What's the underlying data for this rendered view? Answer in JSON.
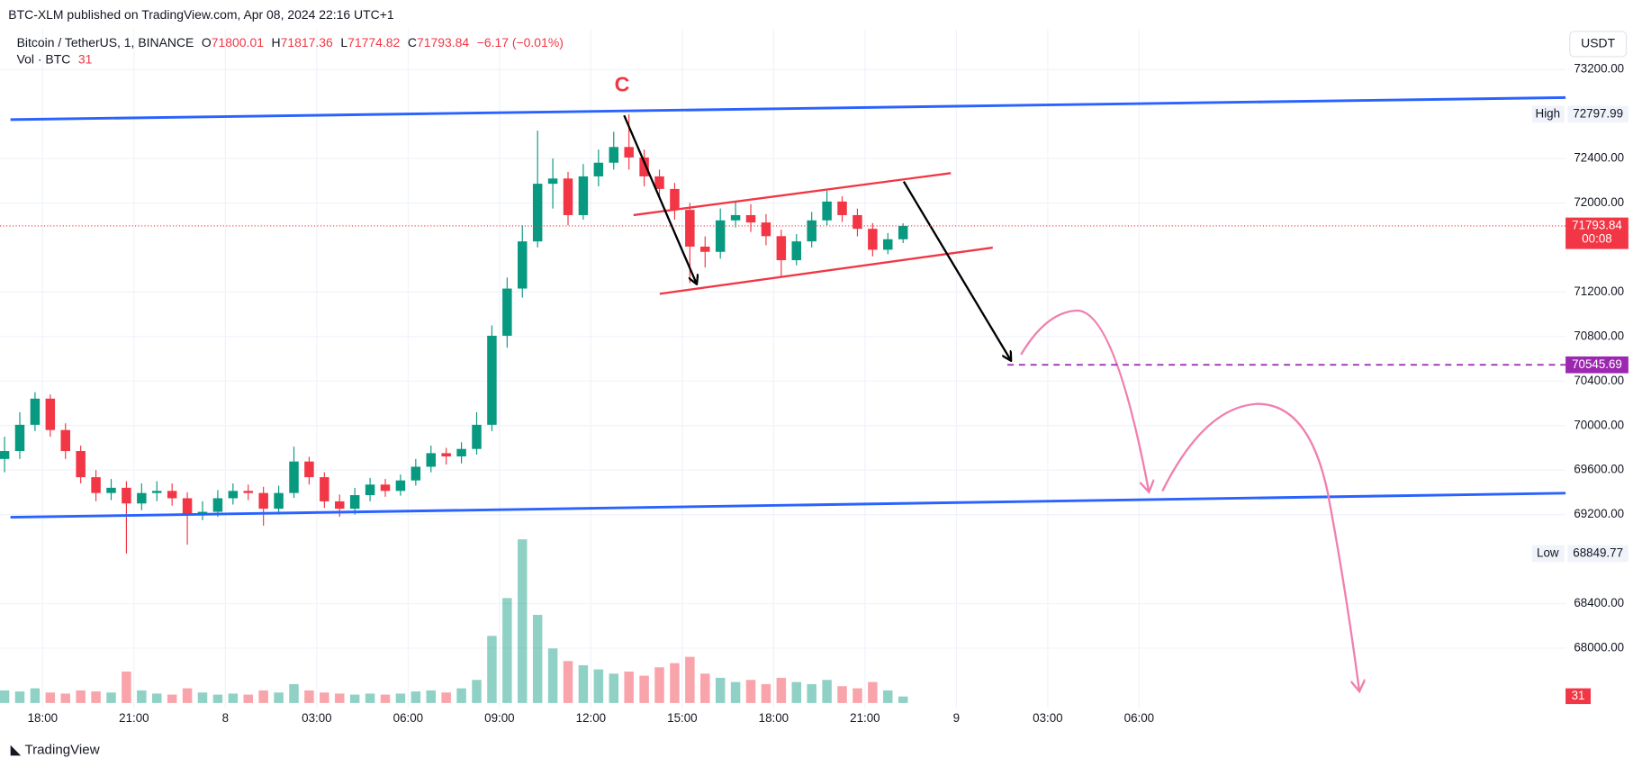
{
  "header": {
    "publisher": "BTC-XLM published on TradingView.com, Apr 08, 2024 22:16 UTC+1",
    "brand": "TradingView",
    "currency_button": "USDT"
  },
  "chart_data": {
    "type": "candlestick",
    "legend": {
      "symbol": "Bitcoin / TetherUS, 1, BINANCE",
      "ohlc": [
        {
          "key": "O",
          "value": "71800.01"
        },
        {
          "key": "H",
          "value": "71817.36"
        },
        {
          "key": "L",
          "value": "71774.82"
        },
        {
          "key": "C",
          "value": "71793.84"
        }
      ],
      "change": "−6.17 (−0.01%)",
      "volume_title": "Vol · BTC"
    },
    "annotation": "C",
    "high_label": "High",
    "low_label": "Low",
    "countdown": "00:08",
    "target_level": 70545.69,
    "up_color": "#089981",
    "down_color": "#f23645",
    "x": [
      -1.25,
      -0.75,
      -0.25,
      0.25,
      0.75,
      1.25,
      1.75,
      2.25,
      2.75,
      3.25,
      3.75,
      4.25,
      4.75,
      5.25,
      5.75,
      6.25,
      6.75,
      7.25,
      7.75,
      8.25,
      8.75,
      9.25,
      9.75,
      10.25,
      10.75,
      11.25,
      11.75,
      12.25,
      12.75,
      13.25,
      13.75,
      14.25,
      14.75,
      15.25,
      15.75,
      16.25,
      16.75,
      17.25,
      17.75,
      18.25,
      18.75,
      19.25,
      19.75,
      20.25,
      20.75,
      21.25,
      21.75,
      22.25,
      22.75,
      23.25,
      23.75,
      24.25,
      24.75,
      25.25,
      25.75,
      26.25,
      26.75,
      27.25,
      27.75,
      28.25
    ],
    "open": [
      69700,
      69771,
      70007,
      70242,
      69960,
      69771,
      69536,
      69394,
      69441,
      69300,
      69394,
      69413,
      69347,
      69206,
      69225,
      69347,
      69413,
      69394,
      69253,
      69394,
      69677,
      69536,
      69319,
      69253,
      69375,
      69470,
      69413,
      69507,
      69630,
      69752,
      69723,
      69790,
      70007,
      70807,
      71231,
      71655,
      72173,
      72220,
      71891,
      72239,
      72362,
      72503,
      72409,
      72239,
      72126,
      71938,
      71608,
      71561,
      71844,
      71891,
      71825,
      71702,
      71486,
      71655,
      71844,
      72013,
      71891,
      71768,
      71580,
      71674
    ],
    "high": [
      69900,
      70120,
      70300,
      70280,
      70020,
      69820,
      69600,
      69520,
      69500,
      69480,
      69500,
      69480,
      69400,
      69320,
      69420,
      69480,
      69470,
      69450,
      69460,
      69810,
      69720,
      69580,
      69380,
      69440,
      69530,
      69520,
      69560,
      69700,
      69820,
      69800,
      69850,
      70120,
      70900,
      71330,
      71800,
      72650,
      72400,
      72280,
      72350,
      72480,
      72640,
      72797.99,
      72480,
      72300,
      72180,
      72000,
      71700,
      71950,
      72020,
      71990,
      71900,
      71760,
      71720,
      71920,
      72110,
      72060,
      71950,
      71820,
      71730,
      71817.36
    ],
    "low": [
      69580,
      69700,
      69950,
      69900,
      69700,
      69480,
      69320,
      69330,
      68849.77,
      69240,
      69320,
      69280,
      68930,
      69150,
      69180,
      69290,
      69330,
      69100,
      69200,
      69350,
      69470,
      69260,
      69180,
      69200,
      69320,
      69360,
      69370,
      69460,
      69580,
      69650,
      69660,
      69740,
      69950,
      70700,
      71150,
      71600,
      71950,
      71800,
      71850,
      72150,
      72300,
      72300,
      72150,
      72030,
      71850,
      71280,
      71420,
      71500,
      71780,
      71740,
      71620,
      71330,
      71440,
      71600,
      71800,
      71830,
      71700,
      71520,
      71540,
      71640
    ],
    "close": [
      69771,
      70007,
      70242,
      69960,
      69771,
      69536,
      69394,
      69441,
      69300,
      69394,
      69413,
      69347,
      69206,
      69225,
      69347,
      69413,
      69394,
      69253,
      69394,
      69677,
      69536,
      69319,
      69253,
      69375,
      69470,
      69413,
      69507,
      69630,
      69752,
      69723,
      69790,
      70007,
      70807,
      71231,
      71655,
      72173,
      72220,
      71891,
      72239,
      72362,
      72503,
      72409,
      72239,
      72126,
      71938,
      71608,
      71561,
      71844,
      71891,
      71825,
      71702,
      71486,
      71655,
      71844,
      72013,
      71891,
      71768,
      71580,
      71674,
      71793.84
    ],
    "volume": [
      60,
      55,
      70,
      50,
      45,
      60,
      55,
      50,
      150,
      60,
      45,
      40,
      70,
      50,
      40,
      45,
      40,
      60,
      50,
      90,
      60,
      50,
      45,
      40,
      45,
      40,
      45,
      55,
      60,
      50,
      70,
      110,
      320,
      500,
      780,
      420,
      260,
      200,
      180,
      160,
      140,
      150,
      130,
      170,
      190,
      220,
      140,
      120,
      100,
      110,
      90,
      120,
      100,
      90,
      110,
      80,
      70,
      100,
      60,
      31
    ],
    "vlim": [
      0,
      850
    ],
    "xlim": [
      -1.4,
      50
    ],
    "ylim": [
      67460,
      73560
    ],
    "xticks": [
      {
        "value": 0,
        "label": "18:00"
      },
      {
        "value": 3,
        "label": "21:00"
      },
      {
        "value": 6,
        "label": "8"
      },
      {
        "value": 9,
        "label": "03:00"
      },
      {
        "value": 12,
        "label": "06:00"
      },
      {
        "value": 15,
        "label": "09:00"
      },
      {
        "value": 18,
        "label": "12:00"
      },
      {
        "value": 21,
        "label": "15:00"
      },
      {
        "value": 24,
        "label": "18:00"
      },
      {
        "value": 27,
        "label": "21:00"
      },
      {
        "value": 30,
        "label": "9"
      },
      {
        "value": 33,
        "label": "03:00"
      },
      {
        "value": 36,
        "label": "06:00"
      }
    ],
    "yticks": [
      {
        "value": 73200,
        "label": "73200.00"
      },
      {
        "value": 72400,
        "label": "72400.00"
      },
      {
        "value": 72000,
        "label": "72000.00"
      },
      {
        "value": 71200,
        "label": "71200.00"
      },
      {
        "value": 70800,
        "label": "70800.00"
      },
      {
        "value": 70400,
        "label": "70400.00"
      },
      {
        "value": 70000,
        "label": "70000.00"
      },
      {
        "value": 69600,
        "label": "69600.00"
      },
      {
        "value": 69200,
        "label": "69200.00"
      },
      {
        "value": 68400,
        "label": "68400.00"
      },
      {
        "value": 68000,
        "label": "68000.00"
      }
    ],
    "grid": true
  }
}
